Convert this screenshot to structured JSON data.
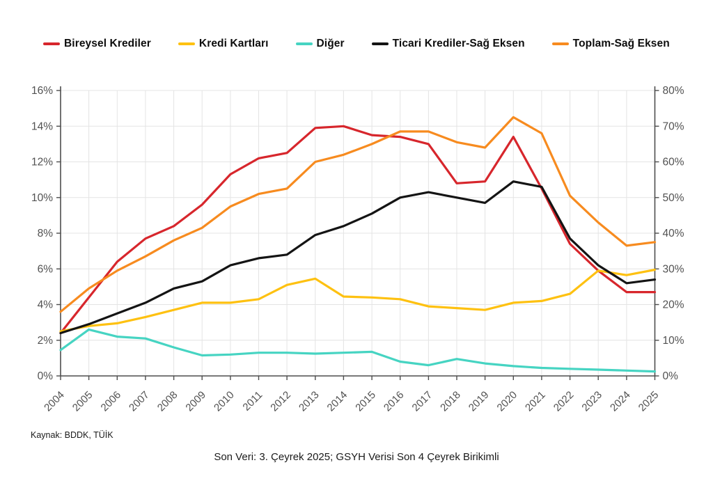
{
  "chart_data": {
    "type": "line",
    "x": [
      2004,
      2005,
      2006,
      2007,
      2008,
      2009,
      2010,
      2011,
      2012,
      2013,
      2014,
      2015,
      2016,
      2017,
      2018,
      2019,
      2020,
      2021,
      2022,
      2023,
      2024,
      2025
    ],
    "left_axis": {
      "min": 0,
      "max": 16,
      "tick_step": 2,
      "unit": "%",
      "tick_labels": [
        "0%",
        "2%",
        "4%",
        "6%",
        "8%",
        "10%",
        "12%",
        "14%",
        "16%"
      ]
    },
    "right_axis": {
      "min": 0,
      "max": 80,
      "tick_step": 10,
      "unit": "%",
      "tick_labels": [
        "0%",
        "10%",
        "20%",
        "30%",
        "40%",
        "50%",
        "60%",
        "70%",
        "80%"
      ]
    },
    "grid": true,
    "legend_position": "top",
    "series": [
      {
        "name": "Bireysel Krediler",
        "color": "#D7262C",
        "axis": "left",
        "values": [
          2.4,
          4.4,
          6.4,
          7.7,
          8.4,
          9.6,
          11.3,
          12.2,
          12.5,
          13.9,
          14.0,
          13.5,
          13.4,
          13.0,
          10.8,
          10.9,
          13.4,
          10.5,
          7.4,
          5.9,
          4.7,
          4.7
        ]
      },
      {
        "name": "Kredi Kartları",
        "color": "#FEC111",
        "axis": "left",
        "values": [
          2.5,
          2.8,
          2.95,
          3.3,
          3.7,
          4.1,
          4.1,
          4.3,
          5.1,
          5.45,
          4.45,
          4.4,
          4.3,
          3.9,
          3.8,
          3.7,
          4.1,
          4.2,
          4.6,
          5.9,
          5.65,
          5.95
        ]
      },
      {
        "name": "Diğer",
        "color": "#46D4C2",
        "axis": "left",
        "values": [
          1.45,
          2.6,
          2.2,
          2.1,
          1.6,
          1.15,
          1.2,
          1.3,
          1.3,
          1.25,
          1.3,
          1.35,
          0.8,
          0.6,
          0.95,
          0.7,
          0.55,
          0.45,
          0.4,
          0.35,
          0.3,
          0.25
        ]
      },
      {
        "name": "Ticari Krediler-Sağ Eksen",
        "color": "#141414",
        "axis": "right",
        "values": [
          12,
          14.5,
          17.5,
          20.5,
          24.5,
          26.5,
          31,
          33,
          34,
          39.5,
          42,
          45.5,
          50,
          51.5,
          50,
          48.5,
          54.5,
          53,
          38.5,
          31,
          26,
          27
        ]
      },
      {
        "name": "Toplam-Sağ Eksen",
        "color": "#F78B1F",
        "axis": "right",
        "values": [
          18,
          24.5,
          29.5,
          33.5,
          38,
          41.5,
          47.5,
          51,
          52.5,
          60,
          62,
          65,
          68.5,
          68.5,
          65.5,
          64,
          72.5,
          68,
          50.5,
          43,
          36.5,
          37.5
        ]
      }
    ],
    "colors": {
      "grid_line": "#E4E4E4",
      "axis_line": "#4d4d4d",
      "tick_label": "#515151"
    }
  },
  "footer": {
    "source": "Kaynak: BDDK, TÜİK",
    "note": "Son Veri: 3. Çeyrek 2025; GSYH Verisi Son 4 Çeyrek Birikimli"
  }
}
